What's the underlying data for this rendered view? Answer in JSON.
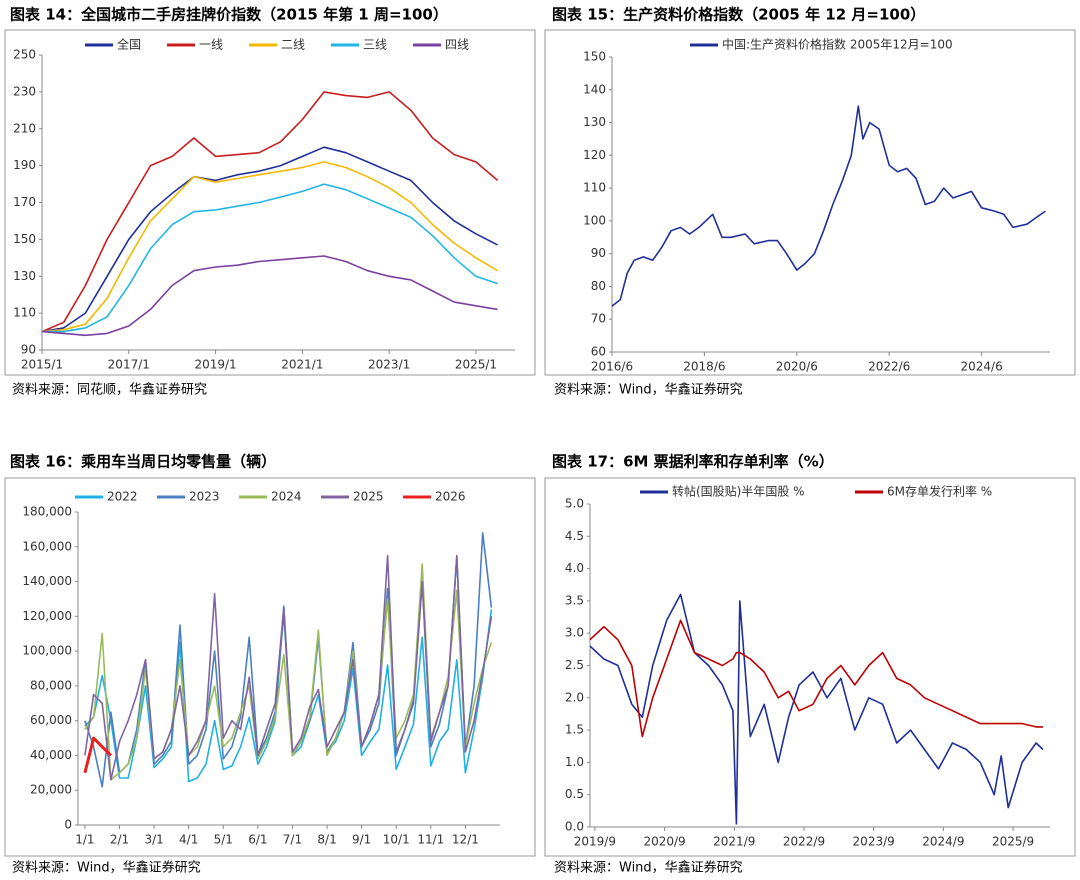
{
  "chart_data": [
    {
      "type": "line",
      "title": "图表 14：全国城市二手房挂牌价指数（2015 年第 1 周=100）",
      "source": "资料来源：同花顺，华鑫证券研究",
      "x": [
        2015,
        2015.5,
        2016,
        2016.5,
        2017,
        2017.5,
        2018,
        2018.5,
        2019,
        2019.5,
        2020,
        2020.5,
        2021,
        2021.5,
        2022,
        2022.5,
        2023,
        2023.5,
        2024,
        2024.5,
        2025,
        2025.5
      ],
      "xlim": [
        2015,
        2025.9
      ],
      "xticks": [
        {
          "value": 2015,
          "label": "2015/1"
        },
        {
          "value": 2017,
          "label": "2017/1"
        },
        {
          "value": 2019,
          "label": "2019/1"
        },
        {
          "value": 2021,
          "label": "2021/1"
        },
        {
          "value": 2023,
          "label": "2023/1"
        },
        {
          "value": 2025,
          "label": "2025/1"
        }
      ],
      "ylim": [
        90,
        250
      ],
      "yticks": [
        90,
        110,
        130,
        150,
        170,
        190,
        210,
        230,
        250
      ],
      "series": [
        {
          "name": "全国",
          "color": "#1f2f9a",
          "values": [
            100,
            102,
            110,
            130,
            150,
            165,
            175,
            184,
            182,
            185,
            187,
            190,
            195,
            200,
            197,
            192,
            187,
            182,
            170,
            160,
            153,
            147
          ]
        },
        {
          "name": "一线",
          "color": "#c81e1e",
          "values": [
            100,
            105,
            125,
            150,
            170,
            190,
            195,
            205,
            195,
            196,
            197,
            203,
            215,
            230,
            228,
            227,
            230,
            220,
            205,
            196,
            192,
            182
          ]
        },
        {
          "name": "二线",
          "color": "#f5b800",
          "values": [
            100,
            101,
            104,
            118,
            140,
            160,
            172,
            184,
            181,
            183,
            185,
            187,
            189,
            192,
            189,
            184,
            178,
            170,
            158,
            148,
            140,
            133
          ]
        },
        {
          "name": "三线",
          "color": "#1fb6e6",
          "values": [
            100,
            100,
            102,
            108,
            125,
            145,
            158,
            165,
            166,
            168,
            170,
            173,
            176,
            180,
            177,
            172,
            167,
            162,
            152,
            140,
            130,
            126
          ]
        },
        {
          "name": "四线",
          "color": "#7b3fa0",
          "values": [
            100,
            99,
            98,
            99,
            103,
            112,
            125,
            133,
            135,
            136,
            138,
            139,
            140,
            141,
            138,
            133,
            130,
            128,
            122,
            116,
            114,
            112
          ]
        }
      ]
    },
    {
      "type": "line",
      "title": "图表 15：生产资料价格指数（2005 年 12 月=100）",
      "source": "资料来源：Wind，华鑫证券研究",
      "x": [
        2016.42,
        2016.6,
        2016.75,
        2016.9,
        2017.1,
        2017.3,
        2017.5,
        2017.7,
        2017.9,
        2018.1,
        2018.3,
        2018.6,
        2018.8,
        2019.0,
        2019.3,
        2019.5,
        2019.8,
        2020.0,
        2020.2,
        2020.42,
        2020.6,
        2020.8,
        2021.0,
        2021.2,
        2021.4,
        2021.6,
        2021.75,
        2021.85,
        2022.0,
        2022.2,
        2022.42,
        2022.6,
        2022.8,
        2023.0,
        2023.2,
        2023.4,
        2023.6,
        2023.8,
        2024.0,
        2024.2,
        2024.42,
        2024.7,
        2024.9,
        2025.1,
        2025.4,
        2025.6,
        2025.8
      ],
      "xlim": [
        2016.42,
        2025.9
      ],
      "xticks": [
        {
          "value": 2016.42,
          "label": "2016/6"
        },
        {
          "value": 2018.42,
          "label": "2018/6"
        },
        {
          "value": 2020.42,
          "label": "2020/6"
        },
        {
          "value": 2022.42,
          "label": "2022/6"
        },
        {
          "value": 2024.42,
          "label": "2024/6"
        }
      ],
      "ylim": [
        60,
        150
      ],
      "yticks": [
        60,
        70,
        80,
        90,
        100,
        110,
        120,
        130,
        140,
        150
      ],
      "series": [
        {
          "name": "中国:生产资料价格指数 2005年12月=100",
          "color": "#1f2f9a",
          "values": [
            74,
            76,
            84,
            88,
            89,
            88,
            92,
            97,
            98,
            96,
            98,
            102,
            95,
            95,
            96,
            93,
            94,
            94,
            90,
            85,
            87,
            90,
            97,
            105,
            112,
            120,
            135,
            125,
            130,
            128,
            117,
            115,
            116,
            113,
            105,
            106,
            110,
            107,
            108,
            109,
            104,
            103,
            102,
            98,
            99,
            101,
            103
          ]
        }
      ]
    },
    {
      "type": "line",
      "title": "图表 16：乘用车当周日均零售量（辆）",
      "source": "资料来源：Wind，华鑫证券研究",
      "x": [
        1,
        1.25,
        1.5,
        1.75,
        2,
        2.25,
        2.5,
        2.75,
        3,
        3.25,
        3.5,
        3.75,
        4,
        4.25,
        4.5,
        4.75,
        5,
        5.25,
        5.5,
        5.75,
        6,
        6.25,
        6.5,
        6.75,
        7,
        7.25,
        7.5,
        7.75,
        8,
        8.25,
        8.5,
        8.75,
        9,
        9.25,
        9.5,
        9.75,
        10,
        10.25,
        10.5,
        10.75,
        11,
        11.25,
        11.5,
        11.75,
        12,
        12.25,
        12.5,
        12.75
      ],
      "xlim": [
        0.8,
        13
      ],
      "xticks": [
        {
          "value": 1,
          "label": "1/1"
        },
        {
          "value": 2,
          "label": "2/1"
        },
        {
          "value": 3,
          "label": "3/1"
        },
        {
          "value": 4,
          "label": "4/1"
        },
        {
          "value": 5,
          "label": "5/1"
        },
        {
          "value": 6,
          "label": "6/1"
        },
        {
          "value": 7,
          "label": "7/1"
        },
        {
          "value": 8,
          "label": "8/1"
        },
        {
          "value": 9,
          "label": "9/1"
        },
        {
          "value": 10,
          "label": "10/1"
        },
        {
          "value": 11,
          "label": "11/1"
        },
        {
          "value": 12,
          "label": "12/1"
        }
      ],
      "ylim": [
        0,
        180000
      ],
      "yticks": [
        0,
        {
          "value": 20000,
          "label": "20,000"
        },
        {
          "value": 40000,
          "label": "40,000"
        },
        {
          "value": 60000,
          "label": "60,000"
        },
        {
          "value": 80000,
          "label": "80,000"
        },
        {
          "value": 100000,
          "label": "100,000"
        },
        {
          "value": 120000,
          "label": "120,000"
        },
        {
          "value": 140000,
          "label": "140,000"
        },
        {
          "value": 160000,
          "label": "160,000"
        },
        {
          "value": 180000,
          "label": "180,000"
        }
      ],
      "series": [
        {
          "name": "2022",
          "color": "#1fb0e6",
          "values": [
            57000,
            62000,
            86000,
            60000,
            27000,
            27000,
            50000,
            80000,
            33000,
            38000,
            45000,
            105000,
            25000,
            27000,
            35000,
            60000,
            32000,
            34000,
            45000,
            62000,
            35000,
            45000,
            60000,
            126000,
            40000,
            45000,
            60000,
            75000,
            42000,
            48000,
            60000,
            90000,
            40000,
            48000,
            55000,
            92000,
            32000,
            45000,
            58000,
            108000,
            34000,
            48000,
            55000,
            95000,
            30000,
            55000,
            85000,
            124000
          ]
        },
        {
          "name": "2023",
          "color": "#4a7fc1",
          "values": [
            60000,
            45000,
            22000,
            65000,
            30000,
            35000,
            55000,
            95000,
            35000,
            40000,
            48000,
            115000,
            35000,
            40000,
            55000,
            100000,
            38000,
            45000,
            62000,
            108000,
            40000,
            50000,
            65000,
            122000,
            40000,
            48000,
            60000,
            108000,
            42000,
            50000,
            65000,
            105000,
            45000,
            55000,
            70000,
            136000,
            40000,
            55000,
            72000,
            140000,
            45000,
            58000,
            80000,
            154000,
            45000,
            80000,
            168000,
            125000
          ]
        },
        {
          "name": "2024",
          "color": "#9bbb59",
          "values": [
            55000,
            62000,
            110000,
            26000,
            30000,
            35000,
            50000,
            90000,
            38000,
            42000,
            55000,
            95000,
            40000,
            45000,
            60000,
            80000,
            45000,
            50000,
            65000,
            80000,
            38000,
            48000,
            62000,
            98000,
            40000,
            48000,
            62000,
            112000,
            40000,
            50000,
            65000,
            100000,
            45000,
            58000,
            75000,
            130000,
            50000,
            60000,
            75000,
            150000,
            50000,
            65000,
            85000,
            135000,
            45000,
            70000,
            90000,
            105000
          ]
        },
        {
          "name": "2025",
          "color": "#8064a2",
          "values": [
            40000,
            75000,
            70000,
            26000,
            48000,
            60000,
            75000,
            95000,
            38000,
            42000,
            55000,
            80000,
            40000,
            48000,
            60000,
            133000,
            50000,
            60000,
            55000,
            85000,
            40000,
            55000,
            70000,
            125000,
            42000,
            50000,
            68000,
            78000,
            45000,
            55000,
            65000,
            95000,
            45000,
            58000,
            75000,
            155000,
            42000,
            55000,
            70000,
            140000,
            48000,
            65000,
            80000,
            155000,
            42000,
            60000,
            88000,
            120000
          ]
        },
        {
          "name": "2026",
          "color": "#e8211f",
          "width": 3,
          "values": [
            30000,
            50000,
            45000,
            40000,
            null,
            null,
            null,
            null,
            null,
            null,
            null,
            null,
            null,
            null,
            null,
            null,
            null,
            null,
            null,
            null,
            null,
            null,
            null,
            null,
            null,
            null,
            null,
            null,
            null,
            null,
            null,
            null,
            null,
            null,
            null,
            null,
            null,
            null,
            null,
            null,
            null,
            null,
            null,
            null,
            null,
            null,
            null,
            null
          ]
        }
      ]
    },
    {
      "type": "line",
      "title": "图表 17：6M 票据利率和存单利率（%）",
      "source": "资料来源：Wind，华鑫证券研究",
      "x": [
        2019.6,
        2019.8,
        2020.0,
        2020.2,
        2020.35,
        2020.5,
        2020.7,
        2020.9,
        2021.1,
        2021.3,
        2021.5,
        2021.65,
        2021.7,
        2021.75,
        2021.9,
        2022.1,
        2022.3,
        2022.45,
        2022.6,
        2022.8,
        2023.0,
        2023.2,
        2023.4,
        2023.6,
        2023.8,
        2024.0,
        2024.2,
        2024.4,
        2024.6,
        2024.8,
        2025.0,
        2025.2,
        2025.4,
        2025.5,
        2025.6,
        2025.8,
        2026.0,
        2026.1
      ],
      "xlim": [
        2019.6,
        2026.2
      ],
      "xticks": [
        {
          "value": 2019.67,
          "label": "2019/9"
        },
        {
          "value": 2020.67,
          "label": "2020/9"
        },
        {
          "value": 2021.67,
          "label": "2021/9"
        },
        {
          "value": 2022.67,
          "label": "2022/9"
        },
        {
          "value": 2023.67,
          "label": "2023/9"
        },
        {
          "value": 2024.67,
          "label": "2024/9"
        },
        {
          "value": 2025.67,
          "label": "2025/9"
        }
      ],
      "ylim": [
        0,
        5
      ],
      "yticks": [
        {
          "value": 0,
          "label": "0.0"
        },
        0.5,
        {
          "value": 1,
          "label": "1.0"
        },
        1.5,
        {
          "value": 2,
          "label": "2.0"
        },
        2.5,
        {
          "value": 3,
          "label": "3.0"
        },
        3.5,
        {
          "value": 4,
          "label": "4.0"
        },
        4.5,
        {
          "value": 5,
          "label": "5.0"
        }
      ],
      "series": [
        {
          "name": "转帖(国股贴)半年国股 %",
          "color": "#1f2f9a",
          "values": [
            2.8,
            2.6,
            2.5,
            1.9,
            1.7,
            2.5,
            3.2,
            3.6,
            2.7,
            2.5,
            2.2,
            1.8,
            0.05,
            3.5,
            1.4,
            1.9,
            1.0,
            1.7,
            2.2,
            2.4,
            2.0,
            2.3,
            1.5,
            2.0,
            1.9,
            1.3,
            1.5,
            1.2,
            0.9,
            1.3,
            1.2,
            1.0,
            0.5,
            1.1,
            0.3,
            1.0,
            1.3,
            1.2
          ]
        },
        {
          "name": "6M存单发行利率 %",
          "color": "#c00000",
          "values": [
            2.9,
            3.1,
            2.9,
            2.5,
            1.4,
            2.0,
            2.6,
            3.2,
            2.7,
            2.6,
            2.5,
            2.6,
            2.7,
            2.7,
            2.6,
            2.4,
            2.0,
            2.1,
            1.8,
            1.9,
            2.3,
            2.5,
            2.2,
            2.5,
            2.7,
            2.3,
            2.2,
            2.0,
            1.9,
            1.8,
            1.7,
            1.6,
            1.6,
            1.6,
            1.6,
            1.6,
            1.55,
            1.55
          ]
        }
      ]
    }
  ]
}
